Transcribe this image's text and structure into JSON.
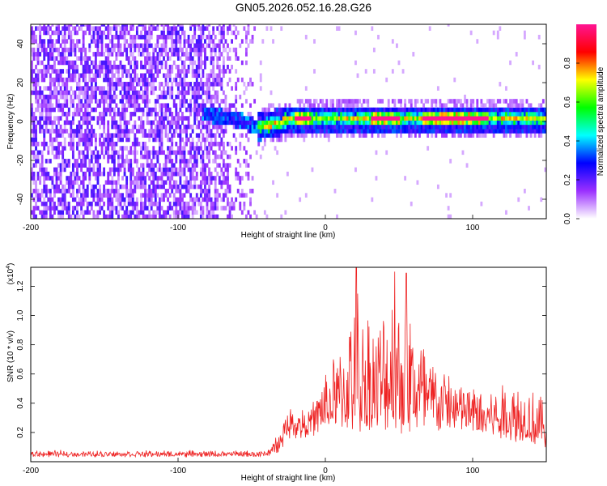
{
  "title": "GN05.2026.052.16.28.G26",
  "chart_data": [
    {
      "type": "heatmap",
      "name": "spectrogram",
      "xlabel": "Height of straight line (km)",
      "ylabel": "Frequency (Hz)",
      "xlim": [
        -200,
        150
      ],
      "ylim": [
        -50,
        50
      ],
      "xticks": [
        -200,
        -100,
        0,
        100
      ],
      "yticks": [
        -40,
        -20,
        0,
        20,
        40
      ],
      "xtick_labels": [
        "-200",
        "-100",
        "0",
        "100"
      ],
      "ytick_labels": [
        "-40",
        "-20",
        "0",
        "20",
        "40"
      ],
      "colorbar": {
        "label": "Normalized spectral amplitude",
        "range": [
          0,
          1
        ],
        "ticks": [
          0.0,
          0.2,
          0.4,
          0.6,
          0.8
        ],
        "tick_labels": [
          "0.0",
          "0.2",
          "0.4",
          "0.6",
          "0.8"
        ],
        "colors": [
          "#ffffff",
          "#9b30ff",
          "#0000ff",
          "#00ffff",
          "#00ff00",
          "#ffff00",
          "#ff0000",
          "#ff1493"
        ]
      },
      "noise_region_end_km": -47,
      "ridge": [
        {
          "x": -80,
          "f": 3
        },
        {
          "x": -70,
          "f": 1
        },
        {
          "x": -60,
          "f": 0
        },
        {
          "x": -47,
          "f": -4
        },
        {
          "x": -35,
          "f": -2
        },
        {
          "x": -25,
          "f": 0
        },
        {
          "x": 0,
          "f": 0
        },
        {
          "x": 50,
          "f": 0
        },
        {
          "x": 100,
          "f": 0
        },
        {
          "x": 150,
          "f": 0
        }
      ],
      "peak_segments": [
        [
          -22,
          -10
        ],
        [
          30,
          50
        ],
        [
          65,
          110
        ]
      ]
    },
    {
      "type": "line",
      "name": "snr",
      "xlabel": "Height of straight line (km)",
      "ylabel": "SNR (10 * v/v)",
      "multiplier_label": "(x10",
      "multiplier_exp": "4",
      "multiplier_close": ")",
      "xlim": [
        -200,
        150
      ],
      "ylim": [
        0,
        1.33
      ],
      "xticks": [
        -200,
        -100,
        0,
        100
      ],
      "yticks": [
        0.2,
        0.4,
        0.6,
        0.8,
        1.0,
        1.2
      ],
      "xtick_labels": [
        "-200",
        "-100",
        "0",
        "100"
      ],
      "ytick_labels": [
        "0.2",
        "0.4",
        "0.6",
        "0.8",
        "1.0",
        "1.2"
      ],
      "color": "#ee2222",
      "envelope": [
        {
          "x": -200,
          "base": 0.05,
          "amp": 0.03
        },
        {
          "x": -40,
          "base": 0.05,
          "amp": 0.03
        },
        {
          "x": -32,
          "base": 0.1,
          "amp": 0.1
        },
        {
          "x": -25,
          "base": 0.25,
          "amp": 0.15
        },
        {
          "x": -10,
          "base": 0.25,
          "amp": 0.15
        },
        {
          "x": 0,
          "base": 0.3,
          "amp": 0.35
        },
        {
          "x": 10,
          "base": 0.3,
          "amp": 0.55
        },
        {
          "x": 20,
          "base": 0.3,
          "amp": 0.9
        },
        {
          "x": 35,
          "base": 0.3,
          "amp": 0.7
        },
        {
          "x": 45,
          "base": 0.3,
          "amp": 0.95
        },
        {
          "x": 55,
          "base": 0.3,
          "amp": 0.85
        },
        {
          "x": 70,
          "base": 0.3,
          "amp": 0.5
        },
        {
          "x": 90,
          "base": 0.3,
          "amp": 0.3
        },
        {
          "x": 110,
          "base": 0.25,
          "amp": 0.3
        },
        {
          "x": 130,
          "base": 0.2,
          "amp": 0.4
        },
        {
          "x": 150,
          "base": 0.15,
          "amp": 0.3
        }
      ],
      "spikes": [
        {
          "x": 21,
          "y": 1.33
        },
        {
          "x": 47,
          "y": 1.3
        },
        {
          "x": 55,
          "y": 1.29
        },
        {
          "x": 22,
          "y": 1.15
        }
      ]
    }
  ]
}
